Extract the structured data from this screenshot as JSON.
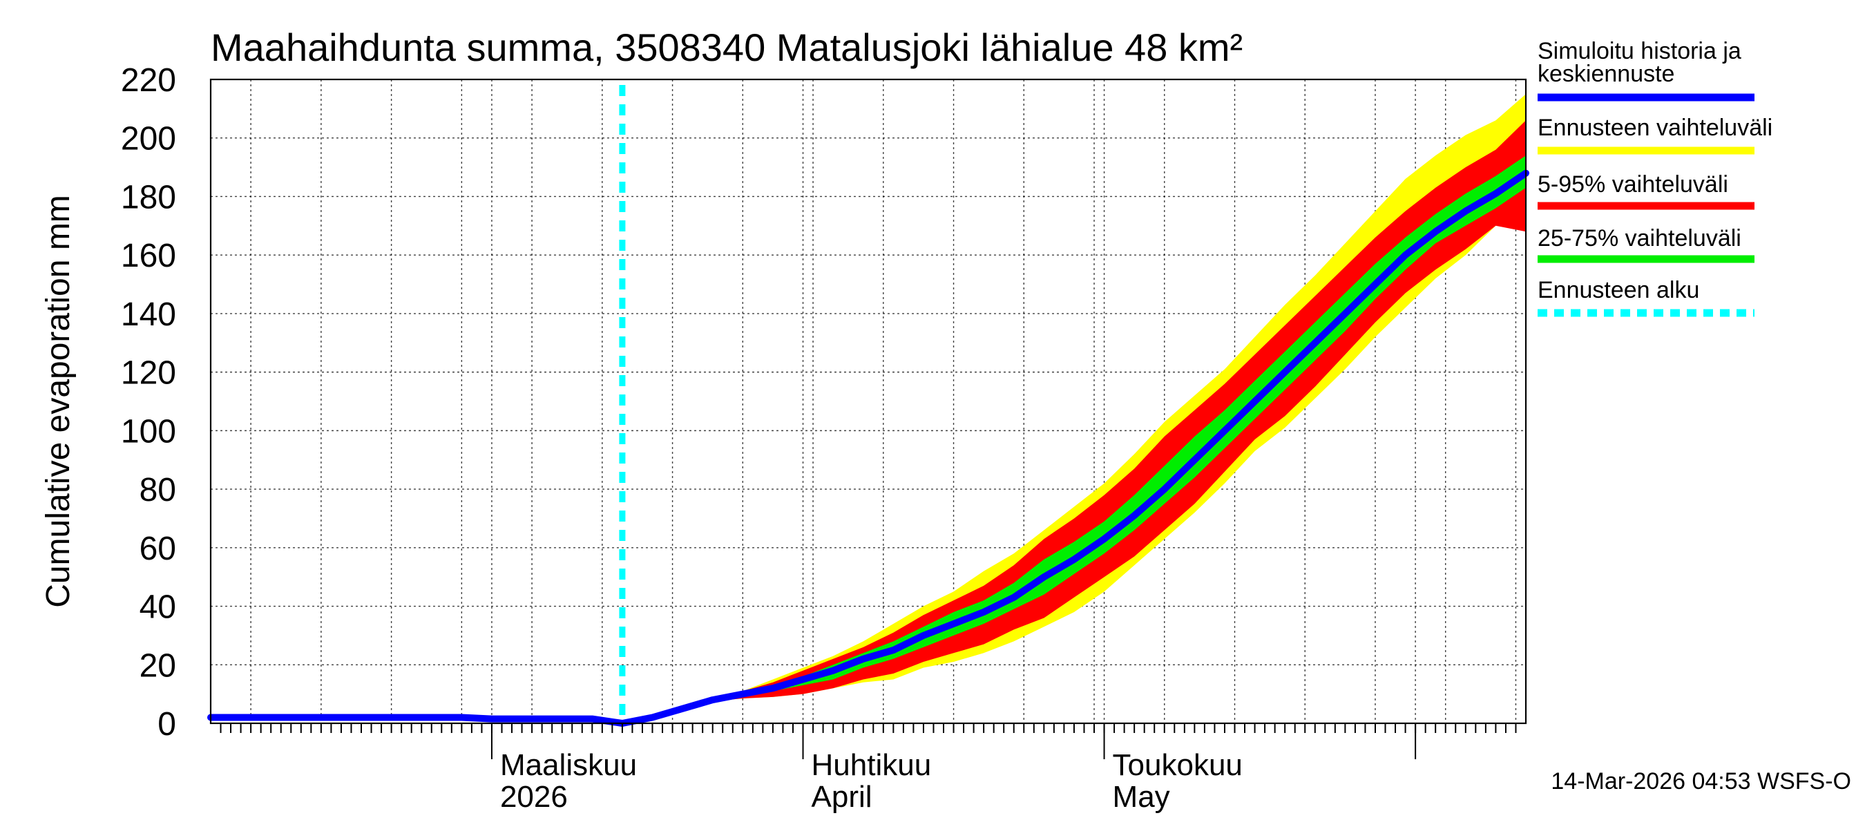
{
  "chart_data": {
    "type": "area",
    "title": "Maahaihdunta summa, 3508340 Matalusjoki lähialue 48 km²",
    "ylabel": "Cumulative evaporation   mm",
    "xlabel": "",
    "ylim": [
      0,
      220
    ],
    "yticks": [
      0,
      20,
      40,
      60,
      80,
      100,
      120,
      140,
      160,
      180,
      200,
      220
    ],
    "x_unit": "days since 2026-02-01",
    "xlim": [
      0,
      131
    ],
    "month_boundaries": [
      28,
      59,
      89,
      120
    ],
    "month_labels": [
      {
        "x": 28,
        "line1": "Maaliskuu",
        "line2": "2026"
      },
      {
        "x": 59,
        "line1": "Huhtikuu",
        "line2": "April"
      },
      {
        "x": 89,
        "line1": "Toukokuu",
        "line2": "May"
      }
    ],
    "forecast_start_x": 41,
    "history": {
      "x": [
        0,
        5,
        10,
        15,
        20,
        25,
        28,
        33,
        38,
        41
      ],
      "y": [
        2,
        2,
        2,
        2,
        2,
        2,
        1.5,
        1.5,
        1.5,
        0
      ]
    },
    "forecast": {
      "x": [
        41,
        44,
        47,
        50,
        53,
        56,
        59,
        62,
        65,
        68,
        71,
        74,
        77,
        80,
        83,
        86,
        89,
        92,
        95,
        98,
        101,
        104,
        107,
        110,
        113,
        116,
        119,
        122,
        125,
        128,
        131
      ],
      "yellow_low": [
        0,
        2,
        5,
        7.5,
        8.5,
        9,
        10,
        12,
        14,
        15,
        19,
        21,
        24,
        28,
        33,
        38,
        45,
        54,
        63,
        72,
        82,
        93,
        101,
        111,
        121,
        132,
        142,
        152,
        160,
        170,
        180
      ],
      "red_low": [
        0,
        2,
        5,
        7.5,
        8.5,
        9,
        10,
        12,
        15,
        17,
        21,
        24,
        27,
        32,
        36,
        43,
        50,
        57,
        66,
        75,
        86,
        97,
        105,
        115,
        126,
        137,
        147,
        155,
        162,
        170,
        168
      ],
      "green_low": [
        0,
        2,
        5,
        7.5,
        9,
        11,
        13,
        15,
        19,
        22,
        26,
        30,
        34,
        39,
        44,
        51,
        58,
        66,
        75,
        84,
        94,
        104,
        114,
        124,
        134,
        145,
        155,
        164,
        170,
        176,
        183
      ],
      "median": [
        0,
        2,
        5,
        8,
        10,
        12,
        15,
        18,
        22,
        25,
        30,
        34,
        38,
        43,
        50,
        56,
        63,
        71,
        80,
        90,
        100,
        110,
        120,
        130,
        140,
        150,
        160,
        168,
        175,
        181,
        188
      ],
      "green_high": [
        0,
        2,
        5,
        8,
        10.5,
        13,
        16,
        20,
        24,
        28,
        33,
        38,
        42,
        48,
        56,
        62,
        69,
        78,
        88,
        98,
        107,
        117,
        127,
        137,
        147,
        157,
        166,
        174,
        181,
        187,
        194
      ],
      "red_high": [
        0,
        2,
        5,
        8,
        11,
        14,
        18,
        22,
        26,
        31,
        37,
        42,
        47,
        54,
        63,
        70,
        78,
        87,
        98,
        107,
        116,
        126,
        136,
        146,
        156,
        166,
        175,
        183,
        190,
        196,
        206
      ],
      "yellow_high": [
        0,
        2,
        5,
        8,
        11,
        15,
        19,
        23,
        28,
        34,
        40,
        45,
        52,
        58,
        66,
        74,
        82,
        92,
        103,
        112,
        121,
        132,
        143,
        153,
        164,
        175,
        186,
        194,
        201,
        206,
        215
      ]
    },
    "series": [
      {
        "name": "Simuloitu historia ja keskiennuste",
        "role": "median",
        "color": "#0000ff"
      },
      {
        "name": "Ennusteen vaihteluväli",
        "role": "range",
        "color": "#ffff00"
      },
      {
        "name": "5-95% vaihteluväli",
        "role": "p5_95",
        "color": "#ff0000"
      },
      {
        "name": "25-75% vaihteluväli",
        "role": "p25_75",
        "color": "#00ee00"
      },
      {
        "name": "Ennusteen alku",
        "role": "forecast_start",
        "color": "#00ffff"
      }
    ],
    "legend": {
      "position": "right",
      "entries": [
        {
          "line1": "Simuloitu historia ja",
          "line2": "keskiennuste",
          "color": "#0000ff",
          "style": "solid"
        },
        {
          "line1": "Ennusteen vaihteluväli",
          "line2": "",
          "color": "#ffff00",
          "style": "solid"
        },
        {
          "line1": "5-95% vaihteluväli",
          "line2": "",
          "color": "#ff0000",
          "style": "solid"
        },
        {
          "line1": "25-75% vaihteluväli",
          "line2": "",
          "color": "#00ee00",
          "style": "solid"
        },
        {
          "line1": "Ennusteen alku",
          "line2": "",
          "color": "#00ffff",
          "style": "dashed"
        }
      ]
    },
    "footer": "14-Mar-2026 04:53 WSFS-O",
    "grid": true
  }
}
